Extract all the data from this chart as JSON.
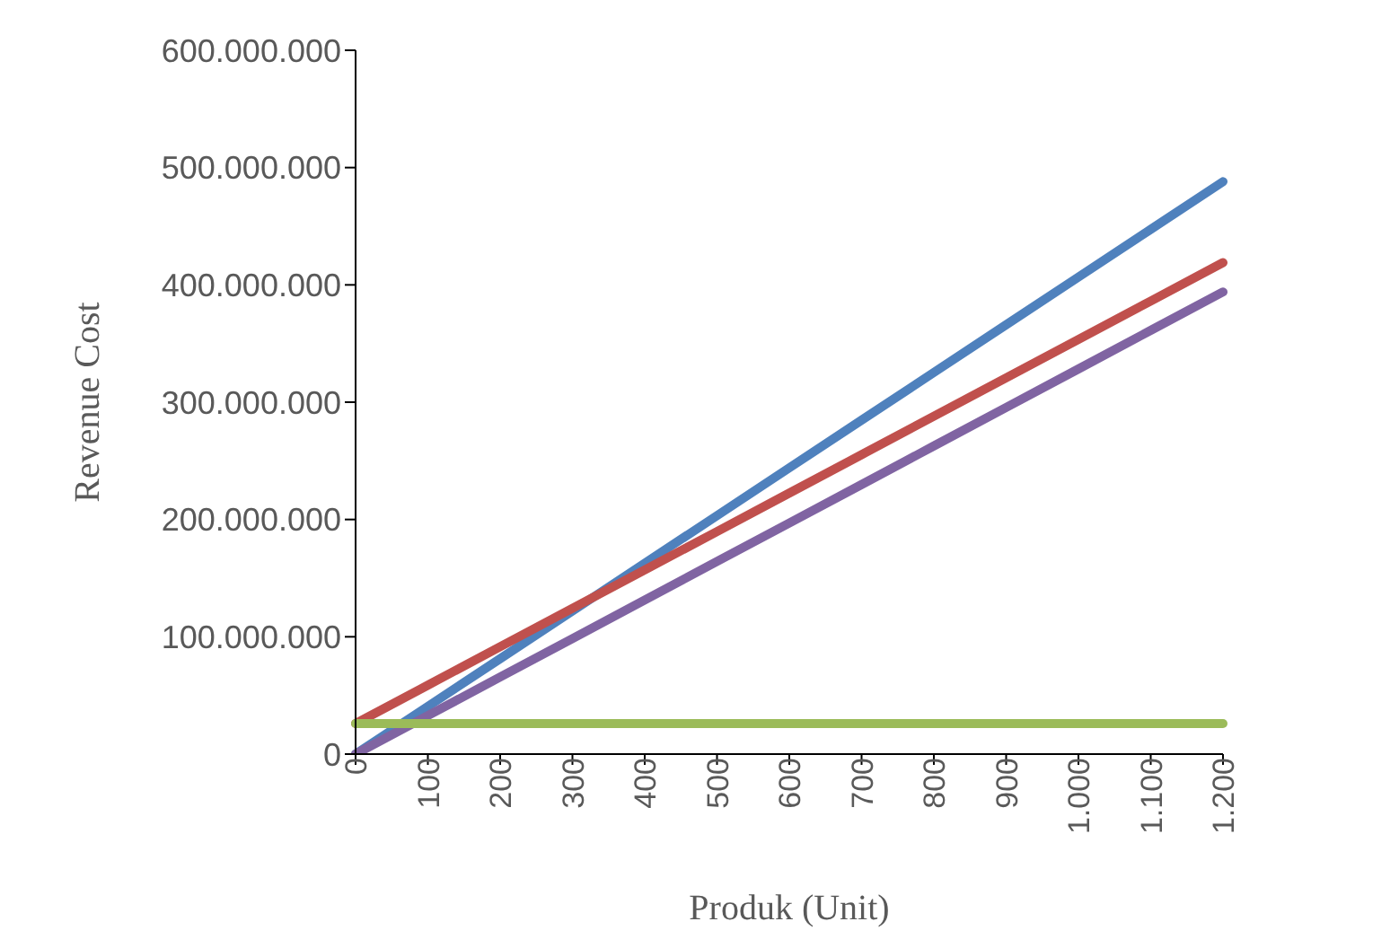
{
  "chart_data": {
    "type": "line",
    "xlabel": "Produk (Unit)",
    "ylabel": "Revenue Cost",
    "categories": [
      "0",
      "100",
      "200",
      "300",
      "400",
      "500",
      "600",
      "700",
      "800",
      "900",
      "1.000",
      "1.100",
      "1.200"
    ],
    "series": [
      {
        "color": "#4f81bd",
        "values": [
          0,
          40700000,
          81300000,
          122000000,
          162700000,
          203300000,
          244000000,
          284700000,
          325300000,
          366000000,
          406700000,
          447300000,
          488000000
        ]
      },
      {
        "color": "#c0504d",
        "values": [
          26000000,
          58750000,
          91500000,
          124250000,
          157000000,
          189750000,
          222500000,
          255250000,
          288000000,
          320750000,
          353500000,
          386250000,
          419000000
        ]
      },
      {
        "color": "#8064a2",
        "values": [
          0,
          32800000,
          65700000,
          98500000,
          131300000,
          164200000,
          197000000,
          229800000,
          262700000,
          295500000,
          328300000,
          361200000,
          394000000
        ]
      },
      {
        "color": "#9bbb59",
        "values": [
          26000000,
          26000000,
          26000000,
          26000000,
          26000000,
          26000000,
          26000000,
          26000000,
          26000000,
          26000000,
          26000000,
          26000000,
          26000000
        ]
      }
    ],
    "ylim": [
      0,
      600000000
    ],
    "yticks": [
      {
        "value": 0,
        "label": "0"
      },
      {
        "value": 100000000,
        "label": "100.000.000"
      },
      {
        "value": 200000000,
        "label": "200.000.000"
      },
      {
        "value": 300000000,
        "label": "300.000.000"
      },
      {
        "value": 400000000,
        "label": "400.000.000"
      },
      {
        "value": 500000000,
        "label": "500.000.000"
      },
      {
        "value": 600000000,
        "label": "600.000.000"
      }
    ],
    "grid": false,
    "legend": false,
    "marker": "none",
    "line_style": "solid"
  }
}
